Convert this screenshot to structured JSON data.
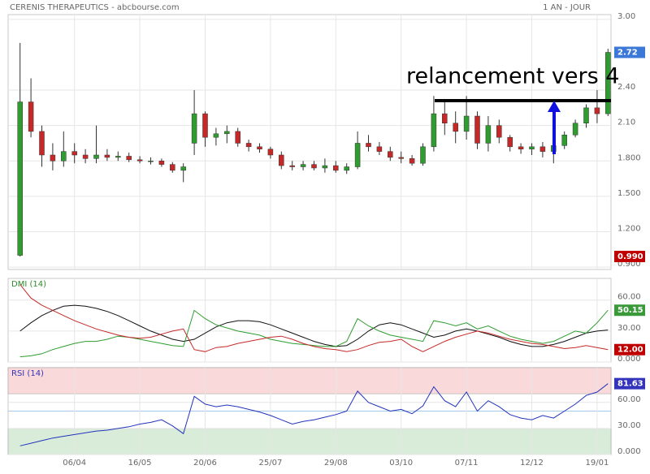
{
  "chart_data": [
    {
      "type": "candlestick",
      "title": "CERENIS THERAPEUTICS - abcbourse.com",
      "subtitle": "1 AN - JOUR",
      "annotation": "relancement vers 4",
      "categories": [
        null,
        null,
        null,
        null,
        null,
        "06/04",
        null,
        null,
        null,
        null,
        null,
        "16/05",
        null,
        null,
        null,
        null,
        null,
        "20/06",
        null,
        null,
        null,
        null,
        null,
        "25/07",
        null,
        null,
        null,
        null,
        null,
        "29/08",
        null,
        null,
        null,
        null,
        null,
        "03/10",
        null,
        null,
        null,
        null,
        null,
        "07/11",
        null,
        null,
        null,
        null,
        null,
        "12/12",
        null,
        null,
        null,
        null,
        null,
        "19/01",
        null
      ],
      "open": [
        1.0,
        2.3,
        2.05,
        1.85,
        1.8,
        1.88,
        1.85,
        1.82,
        1.85,
        1.83,
        1.84,
        1.81,
        1.8,
        1.8,
        1.77,
        1.72,
        1.95,
        2.2,
        2.0,
        2.03,
        2.05,
        1.95,
        1.92,
        1.9,
        1.85,
        1.76,
        1.75,
        1.77,
        1.74,
        1.76,
        1.72,
        1.75,
        1.95,
        1.92,
        1.88,
        1.83,
        1.82,
        1.78,
        1.92,
        2.2,
        2.12,
        2.05,
        2.18,
        1.95,
        2.1,
        2.0,
        1.92,
        1.9,
        1.92,
        1.88,
        1.93,
        2.02,
        2.12,
        2.25,
        2.2
      ],
      "high": [
        2.8,
        2.5,
        2.1,
        1.95,
        2.05,
        1.95,
        1.9,
        2.1,
        1.9,
        1.88,
        1.87,
        1.84,
        1.83,
        1.82,
        1.79,
        1.78,
        2.4,
        2.22,
        2.08,
        2.1,
        2.08,
        1.98,
        1.95,
        1.92,
        1.88,
        1.8,
        1.8,
        1.8,
        1.82,
        1.8,
        1.78,
        2.05,
        2.02,
        1.96,
        1.92,
        1.88,
        1.85,
        1.95,
        2.35,
        2.32,
        2.22,
        2.35,
        2.22,
        2.18,
        2.15,
        2.02,
        1.95,
        1.95,
        1.96,
        1.95,
        2.05,
        2.15,
        2.28,
        2.4,
        2.75
      ],
      "low": [
        0.99,
        2.0,
        1.75,
        1.72,
        1.75,
        1.78,
        1.78,
        1.78,
        1.8,
        1.8,
        1.79,
        1.78,
        1.77,
        1.75,
        1.7,
        1.62,
        1.85,
        1.92,
        1.93,
        1.95,
        1.92,
        1.88,
        1.87,
        1.82,
        1.73,
        1.72,
        1.72,
        1.72,
        1.7,
        1.7,
        1.69,
        1.73,
        1.88,
        1.85,
        1.8,
        1.78,
        1.76,
        1.76,
        1.88,
        2.02,
        1.95,
        1.98,
        1.9,
        1.88,
        1.95,
        1.88,
        1.86,
        1.85,
        1.83,
        1.78,
        1.9,
        2.0,
        2.08,
        2.12,
        2.18
      ],
      "close": [
        2.3,
        2.05,
        1.85,
        1.8,
        1.88,
        1.85,
        1.82,
        1.85,
        1.83,
        1.84,
        1.81,
        1.8,
        1.8,
        1.77,
        1.72,
        1.75,
        2.2,
        2.0,
        2.03,
        2.05,
        1.95,
        1.92,
        1.9,
        1.85,
        1.76,
        1.75,
        1.77,
        1.74,
        1.76,
        1.72,
        1.75,
        1.95,
        1.92,
        1.88,
        1.83,
        1.82,
        1.78,
        1.92,
        2.2,
        2.12,
        2.05,
        2.18,
        1.95,
        2.1,
        2.0,
        1.92,
        1.9,
        1.92,
        1.88,
        1.93,
        2.02,
        2.12,
        2.25,
        2.2,
        2.72
      ],
      "up_color": "#2e9c2e",
      "down_color": "#c62828",
      "ylim": [
        0.88,
        3.04
      ],
      "yticks": [
        {
          "value": 0.9,
          "label": "0.900"
        },
        {
          "value": 1.2,
          "label": "1.200"
        },
        {
          "value": 1.5,
          "label": "1.500"
        },
        {
          "value": 1.8,
          "label": "1.800"
        },
        {
          "value": 2.1,
          "label": "2.10"
        },
        {
          "value": 2.4,
          "label": "2.40"
        },
        {
          "value": 3.0,
          "label": "3.00"
        }
      ],
      "markers": [
        {
          "value": 2.72,
          "label": "2.72",
          "color": "#3c78d8"
        },
        {
          "value": 0.99,
          "label": "0.990",
          "color": "#c00000"
        }
      ],
      "grid": true
    },
    {
      "type": "line",
      "title": "DMI (14)",
      "title_color": "#2e8b2e",
      "series": [
        {
          "color": "#111111",
          "values": [
            30,
            38,
            45,
            50,
            54,
            55,
            54,
            52,
            49,
            45,
            40,
            35,
            30,
            26,
            22,
            20,
            22,
            28,
            34,
            38,
            40,
            40,
            39,
            36,
            32,
            28,
            24,
            20,
            17,
            15,
            16,
            22,
            30,
            36,
            38,
            36,
            32,
            28,
            24,
            26,
            30,
            32,
            30,
            27,
            24,
            20,
            17,
            15,
            15,
            17,
            20,
            24,
            28,
            30,
            31
          ]
        },
        {
          "color": "#2e9c2e",
          "values": [
            5,
            6,
            8,
            12,
            15,
            18,
            20,
            20,
            22,
            25,
            24,
            22,
            20,
            18,
            16,
            15,
            50,
            42,
            36,
            33,
            30,
            28,
            26,
            22,
            20,
            18,
            17,
            16,
            15,
            15,
            20,
            42,
            35,
            30,
            26,
            24,
            22,
            20,
            40,
            38,
            35,
            38,
            32,
            35,
            30,
            25,
            22,
            20,
            18,
            20,
            25,
            30,
            28,
            38,
            50.15
          ]
        },
        {
          "color": "#c62828",
          "values": [
            75,
            62,
            55,
            50,
            45,
            40,
            36,
            32,
            29,
            26,
            24,
            23,
            24,
            27,
            30,
            32,
            12,
            10,
            14,
            15,
            18,
            20,
            22,
            24,
            25,
            22,
            18,
            15,
            13,
            12,
            10,
            12,
            16,
            19,
            20,
            22,
            15,
            10,
            15,
            20,
            24,
            27,
            30,
            28,
            25,
            22,
            20,
            18,
            17,
            15,
            13,
            14,
            16,
            14,
            12
          ]
        }
      ],
      "ylim": [
        0,
        81
      ],
      "yticks": [
        {
          "value": 0,
          "label": "0.000"
        },
        {
          "value": 30,
          "label": "30.00"
        },
        {
          "value": 60,
          "label": "60.00"
        }
      ],
      "markers": [
        {
          "value": 50.15,
          "label": "50.15",
          "color": "#3a9a3a"
        },
        {
          "value": 12,
          "label": "12.00",
          "color": "#c00000"
        }
      ],
      "grid": true
    },
    {
      "type": "line",
      "title": "RSI (14)",
      "title_color": "#3333bb",
      "series": [
        {
          "color": "#2233bb",
          "values": [
            10,
            13,
            16,
            19,
            21,
            23,
            25,
            27,
            28,
            30,
            32,
            35,
            37,
            40,
            33,
            24,
            67,
            58,
            55,
            57,
            55,
            52,
            49,
            45,
            40,
            35,
            38,
            40,
            43,
            46,
            50,
            73,
            60,
            55,
            50,
            52,
            47,
            56,
            78,
            62,
            55,
            72,
            50,
            62,
            55,
            46,
            42,
            40,
            45,
            42,
            50,
            58,
            68,
            72,
            81.63
          ]
        }
      ],
      "zones": [
        {
          "from": 70,
          "to": 100,
          "color": "#f9d9d9"
        },
        {
          "from": 0,
          "to": 30,
          "color": "#d9ecd9"
        }
      ],
      "midline": 50,
      "ylim": [
        0,
        100
      ],
      "yticks": [
        {
          "value": 0,
          "label": "0.000"
        },
        {
          "value": 30,
          "label": "30.00"
        },
        {
          "value": 60,
          "label": "60.00"
        }
      ],
      "markers": [
        {
          "value": 81.63,
          "label": "81.63",
          "color": "#3333bb"
        }
      ],
      "grid": true
    }
  ]
}
